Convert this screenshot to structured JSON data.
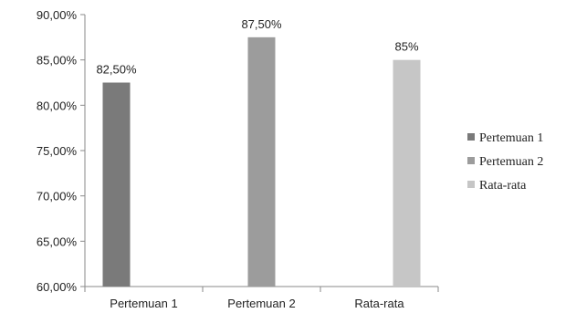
{
  "chart_data": {
    "type": "bar",
    "categories": [
      "Pertemuan 1",
      "Pertemuan 2",
      "Rata-rata"
    ],
    "series": [
      {
        "name": "Pertemuan 1",
        "values": [
          82.5,
          null,
          null
        ],
        "labels": [
          "82,50%",
          "",
          ""
        ],
        "color": "#7a7a7a"
      },
      {
        "name": "Pertemuan 2",
        "values": [
          null,
          87.5,
          null
        ],
        "labels": [
          "",
          "87,50%",
          ""
        ],
        "color": "#9c9c9c"
      },
      {
        "name": "Rata-rata",
        "values": [
          null,
          null,
          85
        ],
        "labels": [
          "",
          "",
          "85%"
        ],
        "color": "#c6c6c6"
      }
    ],
    "ylim": [
      60,
      90
    ],
    "yticks": [
      60,
      65,
      70,
      75,
      80,
      85,
      90
    ],
    "ytick_labels": [
      "60,00%",
      "65,00%",
      "70,00%",
      "75,00%",
      "80,00%",
      "85,00%",
      "90,00%"
    ],
    "grid": false,
    "legend": "right"
  }
}
